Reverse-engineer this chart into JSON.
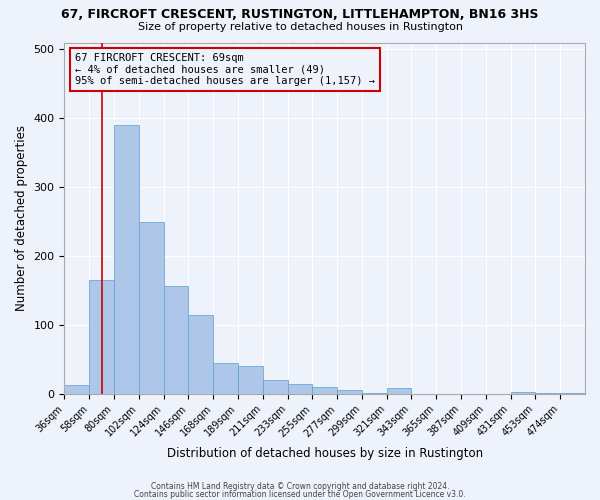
{
  "title": "67, FIRCROFT CRESCENT, RUSTINGTON, LITTLEHAMPTON, BN16 3HS",
  "subtitle": "Size of property relative to detached houses in Rustington",
  "xlabel": "Distribution of detached houses by size in Rustington",
  "ylabel": "Number of detached properties",
  "bar_labels": [
    "36sqm",
    "58sqm",
    "80sqm",
    "102sqm",
    "124sqm",
    "146sqm",
    "168sqm",
    "189sqm",
    "211sqm",
    "233sqm",
    "255sqm",
    "277sqm",
    "299sqm",
    "321sqm",
    "343sqm",
    "365sqm",
    "387sqm",
    "409sqm",
    "431sqm",
    "453sqm",
    "474sqm"
  ],
  "bar_values": [
    13,
    166,
    390,
    250,
    157,
    115,
    45,
    40,
    20,
    15,
    10,
    6,
    2,
    8,
    0,
    0,
    0,
    0,
    3,
    2,
    2
  ],
  "bar_color": "#aec6e8",
  "bar_edgecolor": "#5a9fd4",
  "background_color": "#eef3fb",
  "grid_color": "#ffffff",
  "annotation_box_text": "67 FIRCROFT CRESCENT: 69sqm\n← 4% of detached houses are smaller (49)\n95% of semi-detached houses are larger (1,157) →",
  "annotation_box_edgecolor": "#cc0000",
  "ylim": [
    0,
    510
  ],
  "footnote1": "Contains HM Land Registry data © Crown copyright and database right 2024.",
  "footnote2": "Contains public sector information licensed under the Open Government Licence v3.0."
}
